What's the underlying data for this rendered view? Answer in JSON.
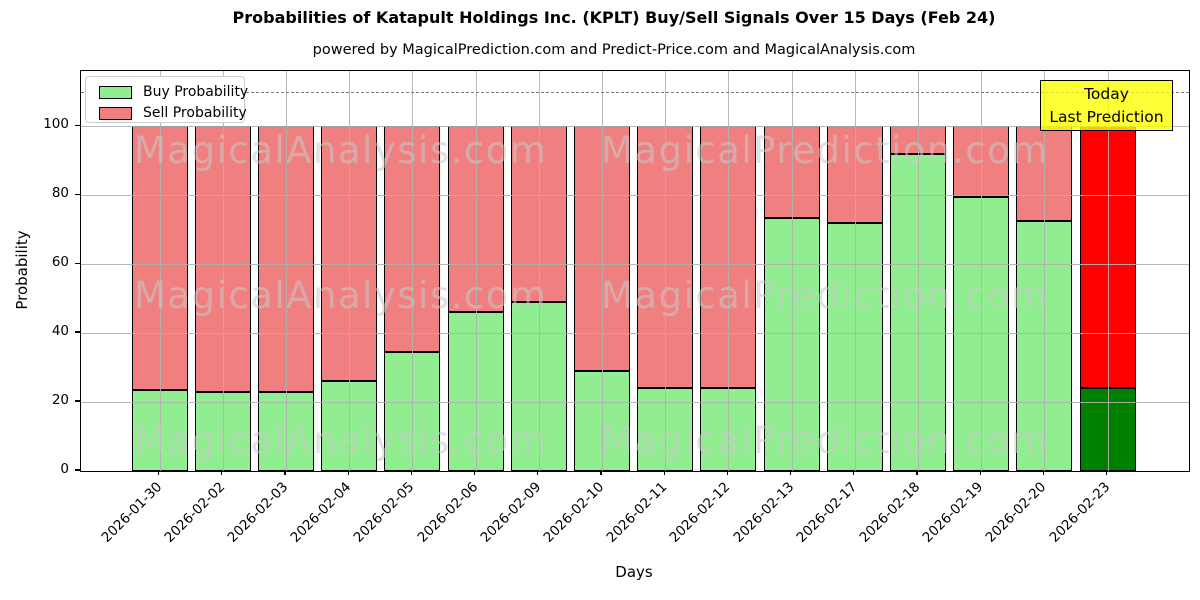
{
  "chart_data": {
    "type": "bar",
    "stacked": true,
    "title": "Probabilities of Katapult Holdings Inc. (KPLT) Buy/Sell Signals Over 15 Days (Feb 24)",
    "subtitle": "powered by MagicalPrediction.com and Predict-Price.com and MagicalAnalysis.com",
    "xlabel": "Days",
    "ylabel": "Probability",
    "ylim": [
      0,
      116
    ],
    "yticks": [
      0,
      20,
      40,
      60,
      80,
      100
    ],
    "grid": true,
    "dashed_hline_y": 110,
    "legend_position": "upper left",
    "categories": [
      "2026-01-30",
      "2026-02-02",
      "2026-02-03",
      "2026-02-04",
      "2026-02-05",
      "2026-02-06",
      "2026-02-09",
      "2026-02-10",
      "2026-02-11",
      "2026-02-12",
      "2026-02-13",
      "2026-02-17",
      "2026-02-18",
      "2026-02-19",
      "2026-02-20",
      "2026-02-23"
    ],
    "series": [
      {
        "name": "Buy Probability",
        "color": "#90EE90",
        "values": [
          23.5,
          23,
          23,
          26,
          34.5,
          46,
          49,
          29,
          24,
          24,
          73.5,
          72,
          92,
          79.5,
          72.5,
          24
        ]
      },
      {
        "name": "Sell Probability",
        "color": "#F08080",
        "values": [
          76.5,
          77,
          77,
          74,
          65.5,
          54,
          51,
          71,
          76,
          76,
          26.5,
          28,
          8,
          20.5,
          27.5,
          76
        ]
      }
    ],
    "highlight_last_bar": {
      "index": 15,
      "buy_color": "#008000",
      "sell_color": "#FF0000"
    },
    "annotation": {
      "line1": "Today",
      "line2": "Last Prediction",
      "bg_color": "#FFFF00"
    },
    "watermarks": {
      "left": "MagicalAnalysis.com",
      "right": "MagicalPrediction.com"
    },
    "colors": {
      "grid": "#B4B4B4",
      "dashed_line": "#7A7A7A",
      "bar_edge": "#000000"
    }
  }
}
